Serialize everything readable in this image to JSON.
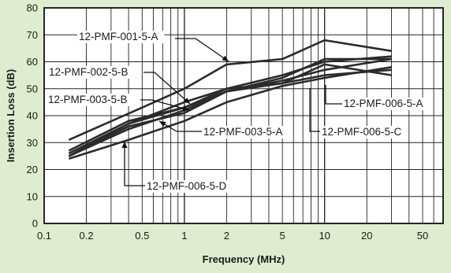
{
  "chart_data": {
    "type": "line",
    "xlabel": "Frequency (MHz)",
    "ylabel": "Insertion Loss (dB)",
    "xscale": "log",
    "xlim": [
      0.1,
      70
    ],
    "ylim": [
      0,
      80
    ],
    "x_ticks": [
      0.1,
      0.2,
      0.5,
      1,
      2,
      5,
      10,
      20,
      50
    ],
    "x_tick_labels": [
      "0.1",
      "0.2",
      "0.5",
      "1",
      "2",
      "5",
      "10",
      "20",
      "50"
    ],
    "y_ticks": [
      0,
      10,
      20,
      30,
      40,
      50,
      60,
      70,
      80
    ],
    "y_tick_labels": [
      "0",
      "10",
      "20",
      "30",
      "40",
      "50",
      "60",
      "70",
      "80"
    ],
    "grid": true,
    "background": "#dfeccf",
    "plot_background": "#ffffff",
    "line_color": "#2b2b2b",
    "series": [
      {
        "name": "12-PMF-001-5-A",
        "x": [
          0.15,
          0.5,
          1,
          2,
          5,
          10,
          30
        ],
        "y": [
          31,
          43,
          50,
          59,
          61,
          68,
          64
        ]
      },
      {
        "name": "12-PMF-002-5-B",
        "x": [
          0.15,
          0.4,
          1,
          2,
          5,
          10,
          30
        ],
        "y": [
          27,
          38,
          43,
          49,
          54,
          61,
          61
        ]
      },
      {
        "name": "12-PMF-003-5-B",
        "x": [
          0.15,
          0.4,
          1,
          2,
          5,
          10,
          30
        ],
        "y": [
          26,
          37,
          45,
          50,
          55,
          60,
          62
        ]
      },
      {
        "name": "12-PMF-003-5-A",
        "x": [
          0.15,
          0.4,
          1,
          2,
          5,
          10,
          30
        ],
        "y": [
          25,
          35,
          42,
          49,
          52,
          59,
          55
        ]
      },
      {
        "name": "12-PMF-006-5-A",
        "x": [
          0.15,
          0.4,
          1,
          2,
          5,
          10,
          30
        ],
        "y": [
          25,
          36,
          41,
          49,
          53,
          57,
          61
        ]
      },
      {
        "name": "12-PMF-006-5-C",
        "x": [
          0.15,
          0.4,
          1,
          2,
          5,
          10,
          30
        ],
        "y": [
          25,
          37,
          43,
          50,
          52,
          55,
          57
        ]
      },
      {
        "name": "12-PMF-006-5-D",
        "x": [
          0.15,
          0.4,
          1,
          2,
          5,
          10,
          30
        ],
        "y": [
          24,
          31,
          38,
          45,
          51,
          54,
          58
        ]
      }
    ]
  }
}
